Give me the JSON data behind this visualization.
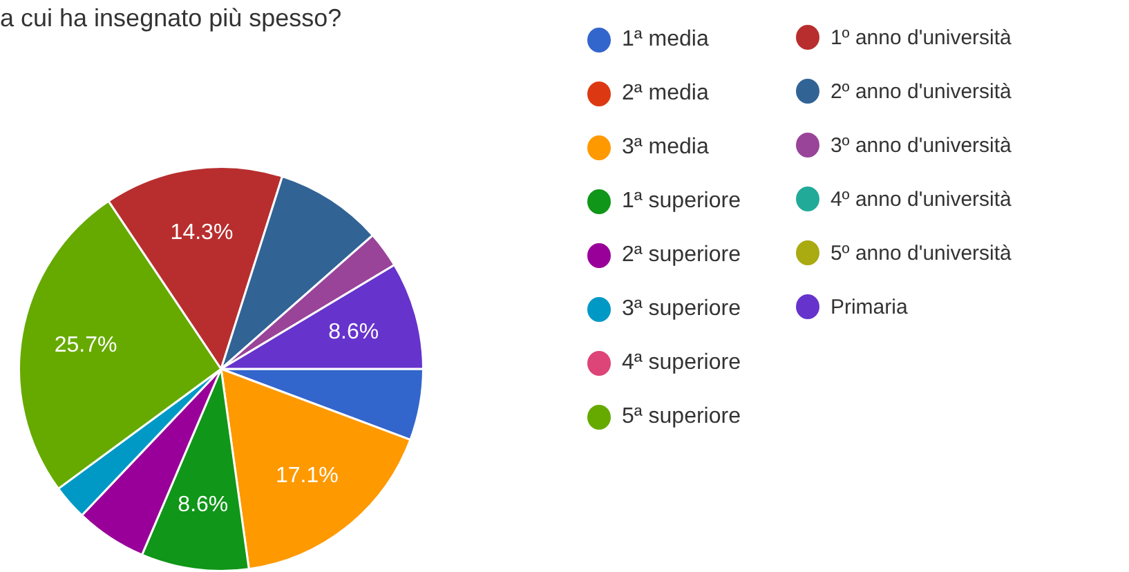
{
  "chart_data": {
    "type": "pie",
    "title": "a cui ha insegnato più spesso?",
    "categories": [
      "1ª media",
      "2ª media",
      "3ª media",
      "1ª superiore",
      "2ª superiore",
      "3ª superiore",
      "4ª superiore",
      "5ª superiore",
      "1º anno d'università",
      "2º anno d'università",
      "3º anno d'università",
      "4º anno d'università",
      "5º anno d'università",
      "Primaria"
    ],
    "values": [
      5.7,
      0,
      17.1,
      8.6,
      5.7,
      2.8,
      0,
      25.7,
      14.3,
      8.6,
      2.9,
      0,
      0,
      8.6
    ],
    "colors": [
      "#3366cc",
      "#dc3912",
      "#ff9900",
      "#109618",
      "#990099",
      "#0099c6",
      "#dd4477",
      "#66aa00",
      "#b82e2e",
      "#316395",
      "#994499",
      "#22aa99",
      "#aaaa11",
      "#6633cc"
    ],
    "value_labels": [
      null,
      null,
      "17.1%",
      "8.6%",
      null,
      null,
      null,
      "25.7%",
      "14.3%",
      null,
      null,
      null,
      null,
      "8.6%"
    ],
    "legend": "right"
  }
}
